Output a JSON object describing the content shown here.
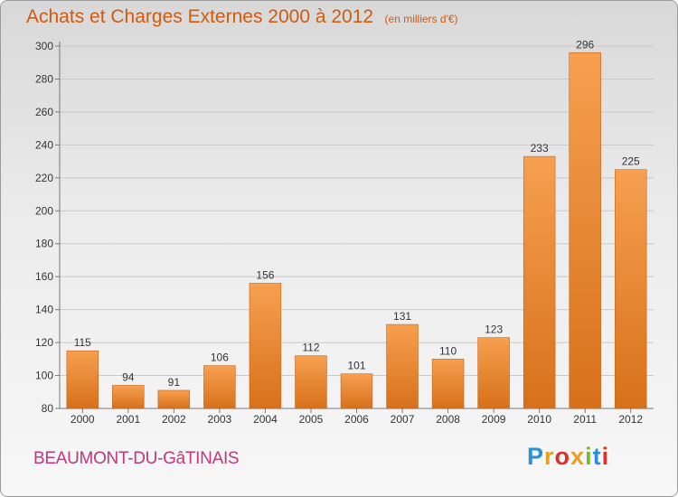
{
  "chart_data": {
    "type": "bar",
    "title": "Achats et Charges Externes 2000 à 2012",
    "subtitle": "(en milliers d'€)",
    "categories": [
      "2000",
      "2001",
      "2002",
      "2003",
      "2004",
      "2005",
      "2006",
      "2007",
      "2008",
      "2009",
      "2010",
      "2011",
      "2012"
    ],
    "values": [
      115,
      94,
      91,
      106,
      156,
      112,
      101,
      131,
      110,
      123,
      233,
      296,
      225
    ],
    "ylim": [
      80,
      300
    ],
    "yticks": [
      80,
      100,
      120,
      140,
      160,
      180,
      200,
      220,
      240,
      260,
      280,
      300
    ],
    "grid": true,
    "bar_color": "#f08a2c"
  },
  "footer": {
    "place_name": "BEAUMONT-DU-GâTINAIS",
    "logo_text": "Proxiti",
    "logo_colors": [
      "#2e8fd6",
      "#e8a11e",
      "#d8332a",
      "#e8a11e",
      "#79b833",
      "#2e8fd6",
      "#d8332a"
    ]
  }
}
